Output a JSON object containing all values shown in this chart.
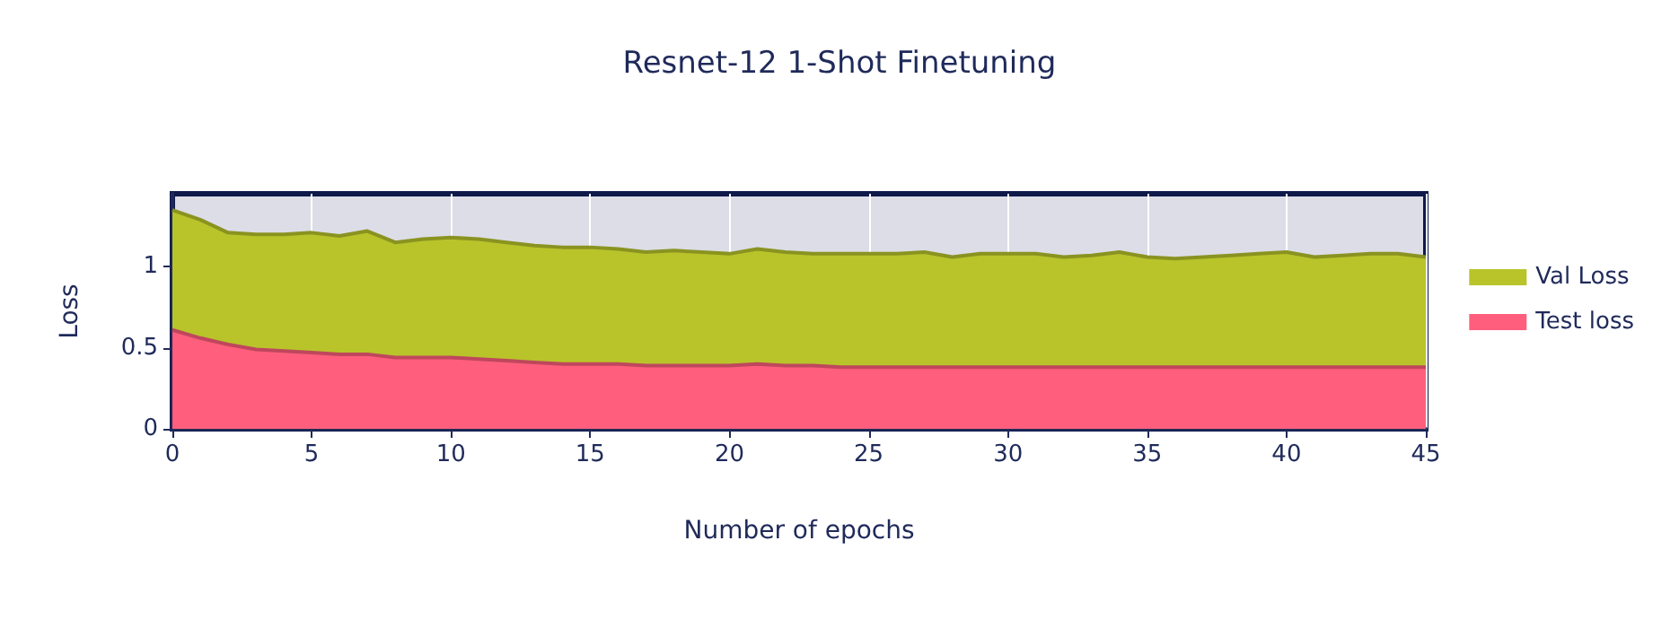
{
  "chart_data": {
    "type": "area",
    "title": "Resnet-12 1-Shot Finetuning",
    "xlabel": "Number of epochs",
    "ylabel": "Loss",
    "xlim": [
      0,
      45
    ],
    "xticks": [
      0,
      5,
      10,
      15,
      20,
      25,
      30,
      35,
      40,
      45
    ],
    "ylim": [
      0,
      1.45
    ],
    "yticks": [
      0,
      0.5,
      1
    ],
    "grid": true,
    "legend": "right",
    "series": [
      {
        "name": "Val Loss",
        "color": "#b8c42a",
        "x": [
          0,
          1,
          2,
          3,
          4,
          5,
          6,
          7,
          8,
          9,
          10,
          11,
          12,
          13,
          14,
          15,
          16,
          17,
          18,
          19,
          20,
          21,
          22,
          23,
          24,
          25,
          26,
          27,
          28,
          29,
          30,
          31,
          32,
          33,
          34,
          35,
          36,
          37,
          38,
          39,
          40,
          41,
          42,
          43,
          44,
          45
        ],
        "values": [
          1.35,
          1.29,
          1.21,
          1.2,
          1.2,
          1.21,
          1.19,
          1.22,
          1.15,
          1.17,
          1.18,
          1.17,
          1.15,
          1.13,
          1.12,
          1.12,
          1.11,
          1.09,
          1.1,
          1.09,
          1.08,
          1.11,
          1.09,
          1.08,
          1.08,
          1.08,
          1.08,
          1.09,
          1.06,
          1.08,
          1.08,
          1.08,
          1.06,
          1.07,
          1.09,
          1.06,
          1.05,
          1.06,
          1.07,
          1.08,
          1.09,
          1.06,
          1.07,
          1.08,
          1.08,
          1.06
        ]
      },
      {
        "name": "Test loss",
        "color": "#ff5f7c",
        "x": [
          0,
          1,
          2,
          3,
          4,
          5,
          6,
          7,
          8,
          9,
          10,
          11,
          12,
          13,
          14,
          15,
          16,
          17,
          18,
          19,
          20,
          21,
          22,
          23,
          24,
          25,
          26,
          27,
          28,
          29,
          30,
          31,
          32,
          33,
          34,
          35,
          36,
          37,
          38,
          39,
          40,
          41,
          42,
          43,
          44,
          45
        ],
        "values": [
          0.61,
          0.56,
          0.52,
          0.49,
          0.48,
          0.47,
          0.46,
          0.46,
          0.44,
          0.44,
          0.44,
          0.43,
          0.42,
          0.41,
          0.4,
          0.4,
          0.4,
          0.39,
          0.39,
          0.39,
          0.39,
          0.4,
          0.39,
          0.39,
          0.38,
          0.38,
          0.38,
          0.38,
          0.38,
          0.38,
          0.38,
          0.38,
          0.38,
          0.38,
          0.38,
          0.38,
          0.38,
          0.38,
          0.38,
          0.38,
          0.38,
          0.38,
          0.38,
          0.38,
          0.38,
          0.38
        ]
      }
    ]
  }
}
